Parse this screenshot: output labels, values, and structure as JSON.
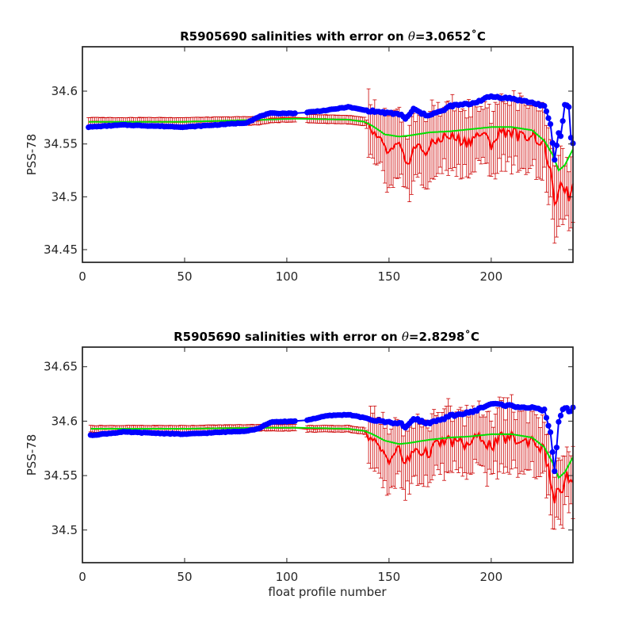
{
  "colors": {
    "raw": "#0000ff",
    "calibrated": "#ff0000",
    "smoothed": "#00e000",
    "error_bar": "#cc0000",
    "axis": "#262626"
  },
  "chart_data": [
    {
      "type": "line",
      "title": "R5905690 salinities with error on θ=3.0652˚C",
      "title_parts": {
        "prefix": "R5905690 salinities with error on ",
        "theta": "θ",
        "suffix": "=3.0652˚C"
      },
      "xlabel": "",
      "ylabel": "PSS-78",
      "xlim": [
        0,
        240
      ],
      "ylim": [
        34.438,
        34.642
      ],
      "xticks": [
        0,
        50,
        100,
        150,
        200
      ],
      "yticks": [
        34.45,
        34.5,
        34.55,
        34.6
      ],
      "ytick_labels": [
        "34.45",
        "34.5",
        "34.55",
        "34.6"
      ],
      "grid": false,
      "series_styles": [
        {
          "key": "raw",
          "marker": "dot"
        },
        {
          "key": "calibrated",
          "marker": "errorbar"
        },
        {
          "key": "smoothed",
          "marker": "none"
        }
      ],
      "knots": {
        "raw": [
          [
            3,
            34.566
          ],
          [
            20,
            34.568
          ],
          [
            50,
            34.566
          ],
          [
            80,
            34.57
          ],
          [
            88,
            34.577
          ],
          [
            92,
            34.579
          ],
          [
            104,
            34.579
          ],
          [
            110,
            34.58
          ],
          [
            120,
            34.582
          ],
          [
            130,
            34.585
          ],
          [
            138,
            34.582
          ],
          [
            142,
            34.581
          ],
          [
            150,
            34.579
          ],
          [
            156,
            34.578
          ],
          [
            158,
            34.573
          ],
          [
            162,
            34.583
          ],
          [
            168,
            34.577
          ],
          [
            176,
            34.581
          ],
          [
            180,
            34.586
          ],
          [
            190,
            34.588
          ],
          [
            200,
            34.595
          ],
          [
            210,
            34.593
          ],
          [
            220,
            34.589
          ],
          [
            226,
            34.586
          ],
          [
            229,
            34.568
          ],
          [
            231,
            34.535
          ],
          [
            233,
            34.561
          ],
          [
            234,
            34.557
          ],
          [
            236,
            34.587
          ],
          [
            238,
            34.586
          ],
          [
            239,
            34.555
          ],
          [
            240,
            34.551
          ]
        ],
        "calibrated": [
          [
            3,
            34.571
          ],
          [
            50,
            34.571
          ],
          [
            86,
            34.572
          ],
          [
            92,
            34.574
          ],
          [
            104,
            34.575
          ],
          [
            110,
            34.574
          ],
          [
            130,
            34.573
          ],
          [
            138,
            34.571
          ],
          [
            140,
            34.566
          ],
          [
            145,
            34.553
          ],
          [
            150,
            34.541
          ],
          [
            155,
            34.548
          ],
          [
            158,
            34.53
          ],
          [
            163,
            34.548
          ],
          [
            168,
            34.543
          ],
          [
            175,
            34.556
          ],
          [
            180,
            34.557
          ],
          [
            188,
            34.552
          ],
          [
            195,
            34.56
          ],
          [
            200,
            34.55
          ],
          [
            205,
            34.562
          ],
          [
            210,
            34.562
          ],
          [
            215,
            34.556
          ],
          [
            220,
            34.56
          ],
          [
            226,
            34.548
          ],
          [
            229,
            34.525
          ],
          [
            231,
            34.488
          ],
          [
            233,
            34.511
          ],
          [
            235,
            34.505
          ],
          [
            237,
            34.51
          ],
          [
            238,
            34.49
          ],
          [
            240,
            34.508
          ]
        ],
        "smoothed": [
          [
            3,
            34.571
          ],
          [
            50,
            34.571
          ],
          [
            90,
            34.573
          ],
          [
            104,
            34.574
          ],
          [
            130,
            34.573
          ],
          [
            138,
            34.571
          ],
          [
            142,
            34.567
          ],
          [
            148,
            34.559
          ],
          [
            155,
            34.557
          ],
          [
            160,
            34.558
          ],
          [
            170,
            34.561
          ],
          [
            180,
            34.562
          ],
          [
            190,
            34.564
          ],
          [
            200,
            34.566
          ],
          [
            210,
            34.566
          ],
          [
            220,
            34.563
          ],
          [
            226,
            34.553
          ],
          [
            230,
            34.54
          ],
          [
            233,
            34.525
          ],
          [
            236,
            34.53
          ],
          [
            240,
            34.545
          ]
        ]
      },
      "error_bar_halfwidth": {
        "before_140": 0.004,
        "after_140": 0.03
      }
    },
    {
      "type": "line",
      "title": "R5905690 salinities with error on θ=2.8298˚C",
      "title_parts": {
        "prefix": "R5905690 salinities with error on ",
        "theta": "θ",
        "suffix": "=2.8298˚C"
      },
      "xlabel": "float profile number",
      "ylabel": "PSS-78",
      "xlim": [
        0,
        240
      ],
      "ylim": [
        34.47,
        34.668
      ],
      "xticks": [
        0,
        50,
        100,
        150,
        200
      ],
      "yticks": [
        34.5,
        34.55,
        34.6,
        34.65
      ],
      "ytick_labels": [
        "34.5",
        "34.55",
        "34.6",
        "34.65"
      ],
      "grid": false,
      "series_styles": [
        {
          "key": "raw",
          "marker": "dot"
        },
        {
          "key": "calibrated",
          "marker": "errorbar"
        },
        {
          "key": "smoothed",
          "marker": "none"
        }
      ],
      "knots": {
        "raw": [
          [
            4,
            34.587
          ],
          [
            20,
            34.59
          ],
          [
            50,
            34.588
          ],
          [
            80,
            34.591
          ],
          [
            86,
            34.593
          ],
          [
            92,
            34.599
          ],
          [
            104,
            34.6
          ],
          [
            110,
            34.601
          ],
          [
            120,
            34.605
          ],
          [
            130,
            34.606
          ],
          [
            138,
            34.603
          ],
          [
            142,
            34.601
          ],
          [
            150,
            34.599
          ],
          [
            156,
            34.598
          ],
          [
            158,
            34.593
          ],
          [
            162,
            34.603
          ],
          [
            168,
            34.598
          ],
          [
            176,
            34.601
          ],
          [
            180,
            34.605
          ],
          [
            190,
            34.608
          ],
          [
            200,
            34.616
          ],
          [
            210,
            34.614
          ],
          [
            220,
            34.612
          ],
          [
            226,
            34.61
          ],
          [
            229,
            34.59
          ],
          [
            231,
            34.553
          ],
          [
            233,
            34.6
          ],
          [
            235,
            34.61
          ],
          [
            237,
            34.613
          ],
          [
            238,
            34.608
          ],
          [
            240,
            34.612
          ]
        ],
        "calibrated": [
          [
            4,
            34.593
          ],
          [
            50,
            34.593
          ],
          [
            86,
            34.594
          ],
          [
            92,
            34.594
          ],
          [
            104,
            34.594
          ],
          [
            110,
            34.593
          ],
          [
            130,
            34.593
          ],
          [
            138,
            34.591
          ],
          [
            140,
            34.586
          ],
          [
            145,
            34.575
          ],
          [
            150,
            34.566
          ],
          [
            155,
            34.574
          ],
          [
            158,
            34.56
          ],
          [
            163,
            34.575
          ],
          [
            168,
            34.57
          ],
          [
            175,
            34.58
          ],
          [
            180,
            34.582
          ],
          [
            188,
            34.578
          ],
          [
            195,
            34.586
          ],
          [
            200,
            34.576
          ],
          [
            205,
            34.584
          ],
          [
            210,
            34.585
          ],
          [
            215,
            34.58
          ],
          [
            220,
            34.584
          ],
          [
            226,
            34.572
          ],
          [
            229,
            34.547
          ],
          [
            231,
            34.525
          ],
          [
            233,
            34.54
          ],
          [
            235,
            34.535
          ],
          [
            237,
            34.55
          ],
          [
            238,
            34.54
          ],
          [
            240,
            34.545
          ]
        ],
        "smoothed": [
          [
            4,
            34.593
          ],
          [
            50,
            34.593
          ],
          [
            90,
            34.594
          ],
          [
            104,
            34.594
          ],
          [
            130,
            34.593
          ],
          [
            138,
            34.591
          ],
          [
            142,
            34.588
          ],
          [
            148,
            34.582
          ],
          [
            155,
            34.579
          ],
          [
            160,
            34.58
          ],
          [
            170,
            34.583
          ],
          [
            180,
            34.585
          ],
          [
            190,
            34.586
          ],
          [
            200,
            34.588
          ],
          [
            210,
            34.588
          ],
          [
            220,
            34.585
          ],
          [
            226,
            34.576
          ],
          [
            230,
            34.562
          ],
          [
            233,
            34.548
          ],
          [
            236,
            34.553
          ],
          [
            240,
            34.567
          ]
        ]
      },
      "error_bar_halfwidth": {
        "before_140": 0.003,
        "after_140": 0.028
      }
    }
  ]
}
